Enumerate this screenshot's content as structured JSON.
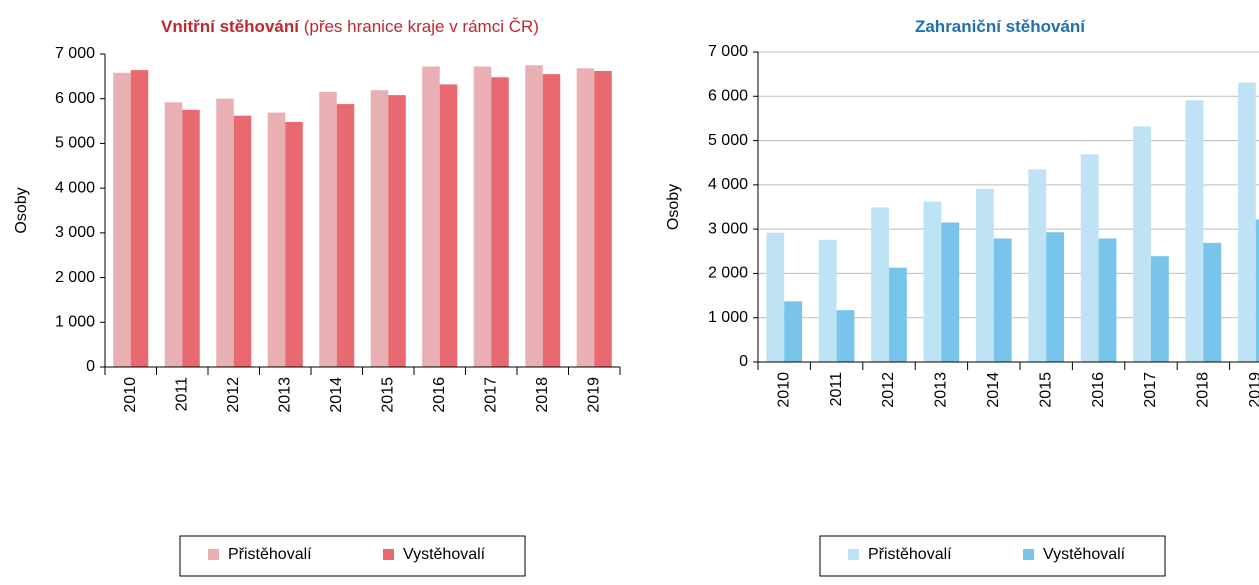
{
  "chart_data": [
    {
      "type": "bar",
      "title": "Vnitřní stěhování",
      "subtitle": "(přes hranice kraje v rámci ČR)",
      "title_color": "#c0282f",
      "ylabel": "Osoby",
      "categories": [
        "2010",
        "2011",
        "2012",
        "2013",
        "2014",
        "2015",
        "2016",
        "2017",
        "2018",
        "2019"
      ],
      "series": [
        {
          "name": "Přistěhovalí",
          "color": "#e8b0b2",
          "values": [
            6580,
            5920,
            6000,
            5690,
            6150,
            6190,
            6720,
            6720,
            6750,
            6680
          ]
        },
        {
          "name": "Vystěhovalí",
          "color": "#e8696f",
          "values": [
            6640,
            5750,
            5620,
            5480,
            5880,
            6080,
            6320,
            6480,
            6550,
            6620
          ]
        }
      ],
      "ylim": [
        0,
        7000
      ],
      "yticks": [
        0,
        {
          "value": 1000,
          "label": "1 000"
        },
        {
          "value": 2000,
          "label": "2 000"
        },
        {
          "value": 3000,
          "label": "3 000"
        },
        {
          "value": 4000,
          "label": "4 000"
        },
        {
          "value": 5000,
          "label": "5 000"
        },
        {
          "value": 6000,
          "label": "6 000"
        },
        {
          "value": 7000,
          "label": "7 000"
        }
      ],
      "grid": false,
      "legend": "bottom"
    },
    {
      "type": "bar",
      "title": "Zahraniční stěhování",
      "title_color": "#1f6fb5",
      "ylabel": "Osoby",
      "categories": [
        "2010",
        "2011",
        "2012",
        "2013",
        "2014",
        "2015",
        "2016",
        "2017",
        "2018",
        "2019"
      ],
      "series": [
        {
          "name": "Přistěhovalí",
          "color": "#bde3f5",
          "values": [
            2920,
            2760,
            3490,
            3620,
            3910,
            4350,
            4690,
            5320,
            5910,
            6310
          ]
        },
        {
          "name": "Vystěhovalí",
          "color": "#79c4ea",
          "values": [
            1370,
            1170,
            2130,
            3150,
            2790,
            2930,
            2790,
            2390,
            2690,
            3220
          ]
        }
      ],
      "ylim": [
        0,
        7000
      ],
      "yticks": [
        0,
        {
          "value": 1000,
          "label": "1 000"
        },
        {
          "value": 2000,
          "label": "2 000"
        },
        {
          "value": 3000,
          "label": "3 000"
        },
        {
          "value": 4000,
          "label": "4 000"
        },
        {
          "value": 5000,
          "label": "5 000"
        },
        {
          "value": 6000,
          "label": "6 000"
        },
        {
          "value": 7000,
          "label": "7 000"
        }
      ],
      "grid": true,
      "legend": "bottom"
    }
  ]
}
